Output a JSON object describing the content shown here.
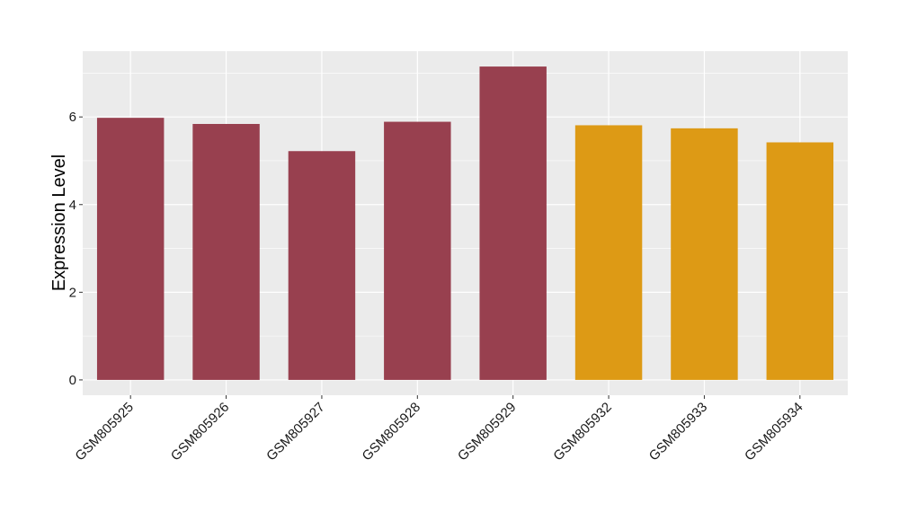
{
  "chart_data": {
    "type": "bar",
    "title": "",
    "xlabel": "",
    "ylabel": "Expression Level",
    "ylim": [
      -0.35,
      7.5
    ],
    "yticks": [
      0,
      2,
      4,
      6
    ],
    "grid": true,
    "legend": "none",
    "categories": [
      "GSM805925",
      "GSM805926",
      "GSM805927",
      "GSM805928",
      "GSM805929",
      "GSM805932",
      "GSM805933",
      "GSM805934"
    ],
    "values": [
      5.98,
      5.84,
      5.22,
      5.89,
      7.15,
      5.81,
      5.74,
      5.42
    ],
    "bar_colors": [
      "#98404f",
      "#98404f",
      "#98404f",
      "#98404f",
      "#98404f",
      "#dd9a15",
      "#dd9a15",
      "#dd9a15"
    ],
    "panel_background": "#ebebeb",
    "gridline_color": "#ffffff"
  }
}
